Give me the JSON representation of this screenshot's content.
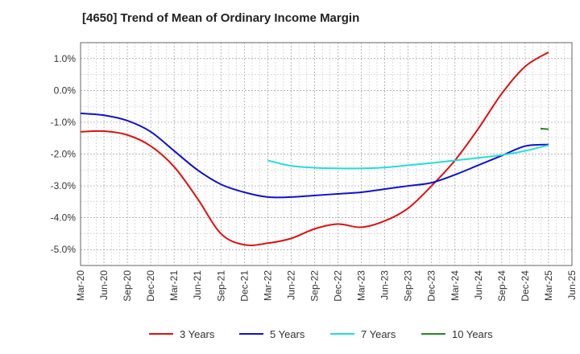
{
  "chart_data": {
    "type": "line",
    "title": "[4650]  Trend of Mean of Ordinary Income Margin",
    "xlabel": "",
    "ylabel": "",
    "ylim": [
      -5.5,
      1.5
    ],
    "y_ticks": [
      1.0,
      0.0,
      -1.0,
      -2.0,
      -3.0,
      -4.0,
      -5.0
    ],
    "y_tick_labels": [
      "1.0%",
      "0.0%",
      "-1.0%",
      "-2.0%",
      "-3.0%",
      "-4.0%",
      "-5.0%"
    ],
    "x_tick_labels": [
      "Mar-20",
      "Jun-20",
      "Sep-20",
      "Dec-20",
      "Mar-21",
      "Jun-21",
      "Sep-21",
      "Dec-21",
      "Mar-22",
      "Jun-22",
      "Sep-22",
      "Dec-22",
      "Mar-23",
      "Jun-23",
      "Sep-23",
      "Dec-23",
      "Mar-24",
      "Jun-24",
      "Sep-24",
      "Dec-24",
      "Mar-25",
      "Jun-25"
    ],
    "grid": true,
    "legend_position": "bottom",
    "series": [
      {
        "name": "3 Years",
        "color": "#dd1111",
        "x": [
          "Mar-20",
          "Jun-20",
          "Sep-20",
          "Dec-20",
          "Mar-21",
          "Jun-21",
          "Sep-21",
          "Dec-21",
          "Mar-22",
          "Jun-22",
          "Sep-22",
          "Dec-22",
          "Mar-23",
          "Jun-23",
          "Sep-23",
          "Dec-23",
          "Mar-24",
          "Jun-24",
          "Sep-24",
          "Dec-24",
          "Mar-25"
        ],
        "values": [
          -1.3,
          -1.28,
          -1.4,
          -1.75,
          -2.4,
          -3.4,
          -4.5,
          -4.85,
          -4.8,
          -4.65,
          -4.35,
          -4.2,
          -4.3,
          -4.1,
          -3.7,
          -3.0,
          -2.2,
          -1.2,
          -0.1,
          0.75,
          1.2
        ]
      },
      {
        "name": "5 Years",
        "color": "#1111cc",
        "x": [
          "Mar-20",
          "Jun-20",
          "Sep-20",
          "Dec-20",
          "Mar-21",
          "Jun-21",
          "Sep-21",
          "Dec-21",
          "Mar-22",
          "Jun-22",
          "Sep-22",
          "Dec-22",
          "Mar-23",
          "Jun-23",
          "Sep-23",
          "Dec-23",
          "Mar-24",
          "Jun-24",
          "Sep-24",
          "Dec-24",
          "Mar-25"
        ],
        "values": [
          -0.72,
          -0.78,
          -0.95,
          -1.3,
          -1.9,
          -2.5,
          -2.95,
          -3.2,
          -3.35,
          -3.35,
          -3.3,
          -3.25,
          -3.2,
          -3.1,
          -3.0,
          -2.9,
          -2.65,
          -2.35,
          -2.05,
          -1.75,
          -1.7
        ]
      },
      {
        "name": "7 Years",
        "color": "#22dddd",
        "x": [
          "Mar-22",
          "Jun-22",
          "Sep-22",
          "Dec-22",
          "Mar-23",
          "Jun-23",
          "Sep-23",
          "Dec-23",
          "Mar-24",
          "Jun-24",
          "Sep-24",
          "Dec-24",
          "Mar-25"
        ],
        "values": [
          -2.2,
          -2.37,
          -2.43,
          -2.45,
          -2.45,
          -2.42,
          -2.35,
          -2.28,
          -2.2,
          -2.12,
          -2.03,
          -1.9,
          -1.72
        ]
      },
      {
        "name": "10 Years",
        "color": "#228822",
        "x": [
          "Dec-24",
          "Mar-25"
        ],
        "values": [
          -1.2,
          -1.22
        ]
      }
    ]
  }
}
